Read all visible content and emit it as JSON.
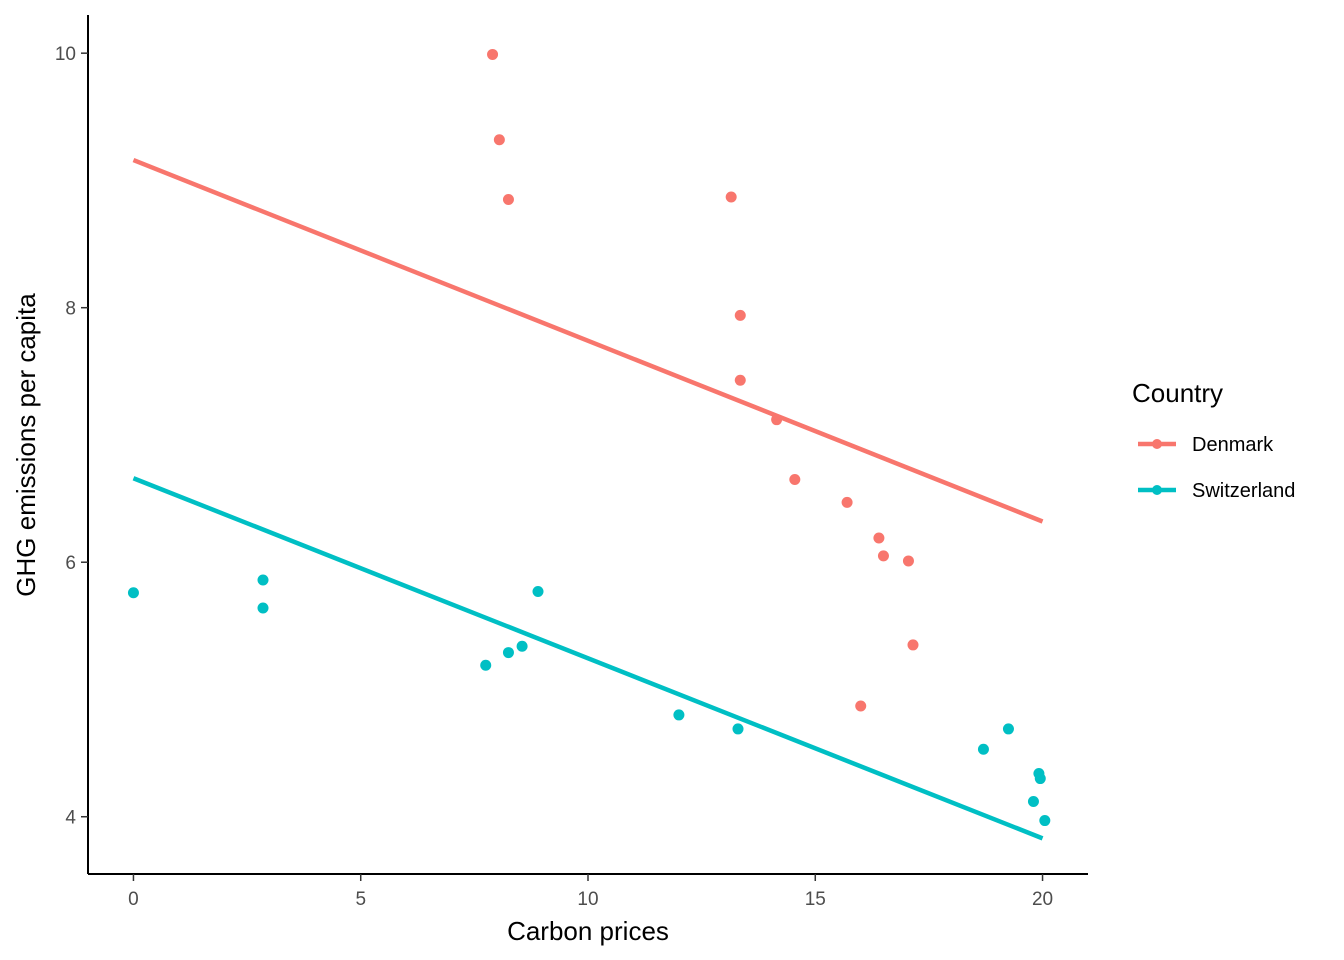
{
  "chart_data": {
    "type": "scatter",
    "title": "",
    "xlabel": "Carbon prices",
    "ylabel": "GHG emissions per capita",
    "xlim": [
      -1,
      21
    ],
    "ylim": [
      3.55,
      10.3
    ],
    "xticks": [
      0,
      5,
      10,
      15,
      20
    ],
    "yticks": [
      4,
      6,
      8,
      10
    ],
    "grid": false,
    "legend": {
      "title": "Country",
      "position": "right"
    },
    "series": [
      {
        "name": "Denmark",
        "color": "#F8766D",
        "points": [
          [
            7.9,
            9.99
          ],
          [
            8.05,
            9.32
          ],
          [
            8.25,
            8.85
          ],
          [
            13.15,
            8.87
          ],
          [
            13.35,
            7.94
          ],
          [
            13.35,
            7.43
          ],
          [
            14.15,
            7.12
          ],
          [
            14.55,
            6.65
          ],
          [
            15.7,
            6.47
          ],
          [
            16.4,
            6.19
          ],
          [
            16.5,
            6.05
          ],
          [
            17.05,
            6.01
          ],
          [
            17.15,
            5.35
          ],
          [
            16.0,
            4.87
          ]
        ],
        "fit": {
          "x": [
            0,
            20
          ],
          "y": [
            9.16,
            6.32
          ]
        }
      },
      {
        "name": "Switzerland",
        "color": "#00BFC4",
        "points": [
          [
            0.0,
            5.76
          ],
          [
            2.85,
            5.86
          ],
          [
            2.85,
            5.64
          ],
          [
            7.75,
            5.19
          ],
          [
            8.25,
            5.29
          ],
          [
            8.55,
            5.34
          ],
          [
            8.9,
            5.77
          ],
          [
            12.0,
            4.8
          ],
          [
            13.3,
            4.69
          ],
          [
            18.7,
            4.53
          ],
          [
            19.25,
            4.69
          ],
          [
            19.8,
            4.12
          ],
          [
            19.92,
            4.34
          ],
          [
            19.95,
            4.3
          ],
          [
            20.05,
            3.97
          ]
        ],
        "fit": {
          "x": [
            0,
            20
          ],
          "y": [
            6.66,
            3.83
          ]
        }
      }
    ]
  }
}
